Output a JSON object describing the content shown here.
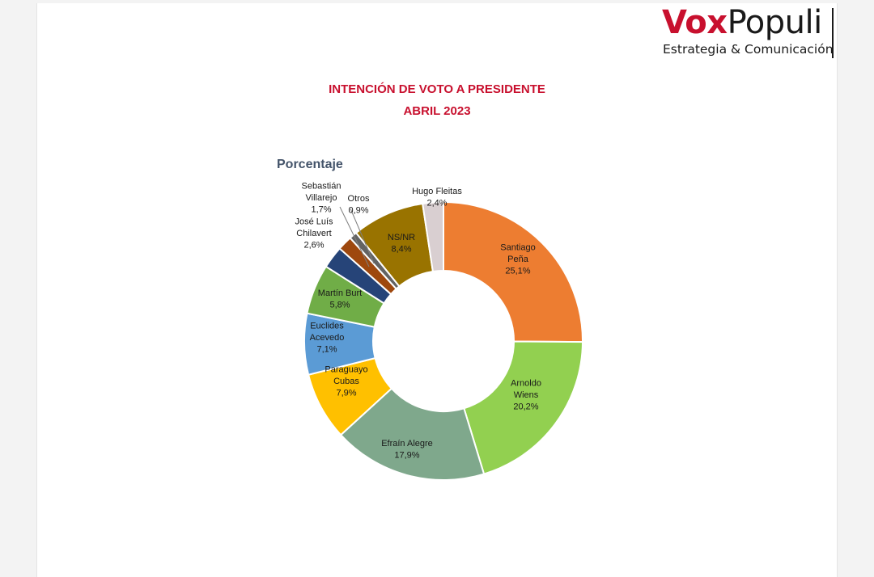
{
  "brand": {
    "vox": "Vox",
    "populi": "Populi",
    "tagline": "Estrategia & Comunicación",
    "red": "#c8102e"
  },
  "header": {
    "title_line1": "INTENCIÓN DE VOTO A PRESIDENTE",
    "title_line2": "ABRIL 2023",
    "subtitle": "Porcentaje"
  },
  "chart_data": {
    "type": "pie",
    "donut": true,
    "unit": "%",
    "slices": [
      {
        "name": "Santiago Peña",
        "label_lines": [
          "Santiago",
          "Peña"
        ],
        "value": 25.1,
        "value_label": "25,1%",
        "color": "#ed7d31"
      },
      {
        "name": "Arnoldo Wiens",
        "label_lines": [
          "Arnoldo",
          "Wiens"
        ],
        "value": 20.2,
        "value_label": "20,2%",
        "color": "#92d050"
      },
      {
        "name": "Efraín Alegre",
        "label_lines": [
          "Efraín Alegre"
        ],
        "value": 17.9,
        "value_label": "17,9%",
        "color": "#7fa88c"
      },
      {
        "name": "Paraguayo Cubas",
        "label_lines": [
          "Paraguayo",
          "Cubas"
        ],
        "value": 7.9,
        "value_label": "7,9%",
        "color": "#ffc000"
      },
      {
        "name": "Euclides Acevedo",
        "label_lines": [
          "Euclides",
          "Acevedo"
        ],
        "value": 7.1,
        "value_label": "7,1%",
        "color": "#5b9bd5"
      },
      {
        "name": "Martín Burt",
        "label_lines": [
          "Martín Burt"
        ],
        "value": 5.8,
        "value_label": "5,8%",
        "color": "#70ad47"
      },
      {
        "name": "José Luís Chilavert",
        "label_lines": [
          "José Luís",
          "Chilavert"
        ],
        "value": 2.6,
        "value_label": "2,6%",
        "color": "#264478"
      },
      {
        "name": "Sebastián Villarejo",
        "label_lines": [
          "Sebastián",
          "Villarejo"
        ],
        "value": 1.7,
        "value_label": "1,7%",
        "color": "#9e480e"
      },
      {
        "name": "Otros",
        "label_lines": [
          "Otros"
        ],
        "value": 0.9,
        "value_label": "0,9%",
        "color": "#636363"
      },
      {
        "name": "NS/NR",
        "label_lines": [
          "NS/NR"
        ],
        "value": 8.4,
        "value_label": "8,4%",
        "color": "#997300"
      },
      {
        "name": "Hugo Fleitas",
        "label_lines": [
          "Hugo Fleitas"
        ],
        "value": 2.4,
        "value_label": "2,4%",
        "color": "#d9cfd1"
      }
    ]
  }
}
